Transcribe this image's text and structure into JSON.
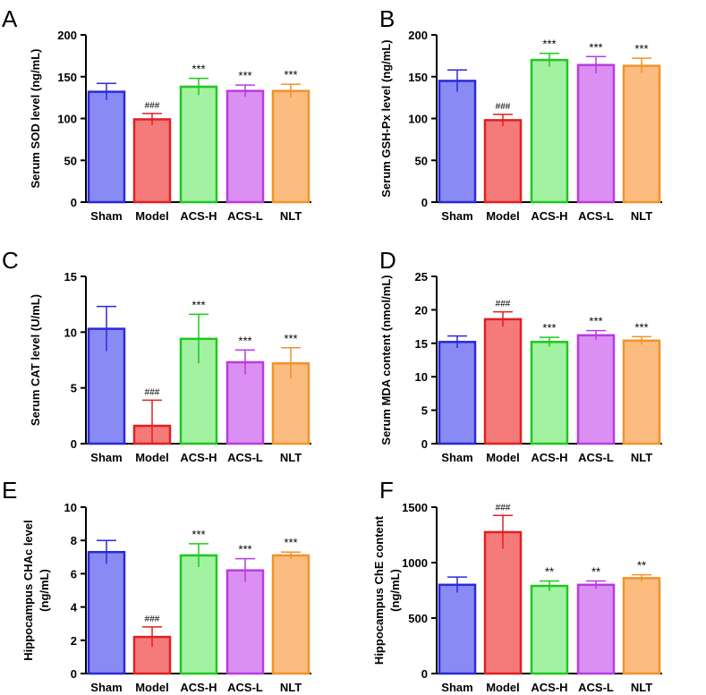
{
  "chart_data": [
    {
      "panel": "A",
      "type": "bar",
      "categories": [
        "Sham",
        "Model",
        "ACS-H",
        "ACS-L",
        "NLT"
      ],
      "values": [
        132,
        99,
        138,
        133,
        133
      ],
      "errors": [
        10,
        7,
        10,
        7,
        8
      ],
      "marks": [
        "",
        "###",
        "***",
        "***",
        "***"
      ],
      "ylabel": "Serum SOD level (ng/mL)",
      "ylim": [
        0,
        200
      ],
      "yticks": [
        "0",
        "50",
        "100",
        "150",
        "200"
      ]
    },
    {
      "panel": "B",
      "type": "bar",
      "categories": [
        "Sham",
        "Model",
        "ACS-H",
        "ACS-L",
        "NLT"
      ],
      "values": [
        145,
        98,
        170,
        164,
        163
      ],
      "errors": [
        13,
        7,
        8,
        10,
        9
      ],
      "marks": [
        "",
        "###",
        "***",
        "***",
        "***"
      ],
      "ylabel": "Serum GSH-Px level (ng/mL)",
      "ylim": [
        0,
        200
      ],
      "yticks": [
        "0",
        "50",
        "100",
        "150",
        "200"
      ]
    },
    {
      "panel": "C",
      "type": "bar",
      "categories": [
        "Sham",
        "Model",
        "ACS-H",
        "ACS-L",
        "NLT"
      ],
      "values": [
        10.3,
        1.6,
        9.4,
        7.3,
        7.2
      ],
      "errors": [
        2.0,
        2.3,
        2.2,
        1.1,
        1.4
      ],
      "marks": [
        "",
        "###",
        "***",
        "***",
        "***"
      ],
      "ylabel": "Serum CAT level (U/mL)",
      "ylim": [
        0,
        15
      ],
      "yticks": [
        "0",
        "5",
        "10",
        "15"
      ]
    },
    {
      "panel": "D",
      "type": "bar",
      "categories": [
        "Sham",
        "Model",
        "ACS-H",
        "ACS-L",
        "NLT"
      ],
      "values": [
        15.2,
        18.6,
        15.2,
        16.2,
        15.4
      ],
      "errors": [
        0.9,
        1.1,
        0.7,
        0.7,
        0.6
      ],
      "marks": [
        "",
        "###",
        "***",
        "***",
        "***"
      ],
      "ylabel": "Serum MDA content (nmol/mL)",
      "ylim": [
        0,
        25
      ],
      "yticks": [
        "0",
        "5",
        "10",
        "15",
        "20",
        "25"
      ]
    },
    {
      "panel": "E",
      "type": "bar",
      "categories": [
        "Sham",
        "Model",
        "ACS-H",
        "ACS-L",
        "NLT"
      ],
      "values": [
        7.3,
        2.2,
        7.1,
        6.2,
        7.1
      ],
      "errors": [
        0.7,
        0.6,
        0.7,
        0.7,
        0.2
      ],
      "marks": [
        "",
        "###",
        "***",
        "***",
        "***"
      ],
      "ylabel": "Hippocampus CHAc level",
      "ylabel2": "(ng/mL)",
      "ylim": [
        0,
        10
      ],
      "yticks": [
        "0",
        "2",
        "4",
        "6",
        "8",
        "10"
      ]
    },
    {
      "panel": "F",
      "type": "bar",
      "categories": [
        "Sham",
        "Model",
        "ACS-H",
        "ACS-L",
        "NLT"
      ],
      "values": [
        800,
        1275,
        790,
        800,
        860
      ],
      "errors": [
        70,
        150,
        45,
        35,
        30
      ],
      "marks": [
        "",
        "###",
        "**",
        "**",
        "**"
      ],
      "ylabel": "Hippocampus ChE content",
      "ylabel2": "(ng/mL)",
      "ylim": [
        0,
        1500
      ],
      "yticks": [
        "0",
        "500",
        "1000",
        "1500"
      ]
    }
  ],
  "colors": {
    "stroke": [
      "#2a2ad8",
      "#e02020",
      "#1ec81e",
      "#b83be0",
      "#f2922a"
    ],
    "fill": [
      "#8a8af5",
      "#f57a7a",
      "#a2f2a2",
      "#dc8ff2",
      "#fcbc80"
    ]
  }
}
